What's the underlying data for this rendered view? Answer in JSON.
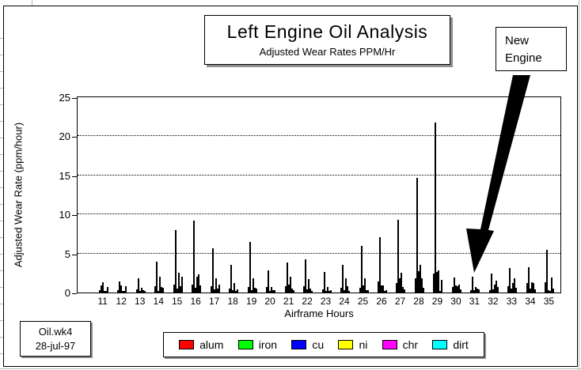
{
  "title_box": {
    "title": "Left Engine Oil Analysis",
    "subtitle": "Adjusted Wear Rates PPM/Hr"
  },
  "file_box": {
    "filename": "Oil.wk4",
    "date": "28-jul-97"
  },
  "chart_data": {
    "type": "bar",
    "title": "Left Engine Oil Analysis",
    "subtitle": "Adjusted Wear Rates PPM/Hr",
    "xlabel": "Airframe Hours",
    "ylabel": "Adjusted Wear Rate (ppm/hour)",
    "ylim": [
      0,
      25
    ],
    "yticks": [
      0,
      5,
      10,
      15,
      20,
      25
    ],
    "gridlines": [
      5,
      10,
      15,
      20
    ],
    "grid_style": "dotted",
    "legend_position": "bottom",
    "categories": [
      11,
      12,
      13,
      14,
      15,
      16,
      17,
      18,
      19,
      20,
      21,
      22,
      23,
      24,
      25,
      26,
      27,
      28,
      29,
      30,
      31,
      32,
      33,
      34,
      35
    ],
    "series": [
      {
        "name": "alum",
        "color": "#ff0000",
        "values": [
          0.3,
          0.35,
          0.4,
          0.85,
          1.0,
          1.0,
          0.8,
          0.5,
          0.7,
          0.75,
          0.85,
          0.85,
          0.4,
          0.6,
          0.6,
          1.4,
          1.2,
          1.85,
          2.4,
          0.7,
          0.3,
          0.35,
          0.85,
          1.2,
          1.3
        ]
      },
      {
        "name": "iron",
        "color": "#00ff00",
        "values": [
          0.9,
          1.4,
          1.85,
          3.95,
          8.0,
          9.2,
          5.7,
          3.5,
          6.5,
          2.85,
          3.85,
          4.3,
          2.6,
          3.5,
          5.95,
          7.1,
          9.3,
          14.7,
          21.8,
          1.95,
          2.0,
          2.4,
          3.1,
          3.2,
          5.5
        ]
      },
      {
        "name": "cu",
        "color": "#0000ff",
        "values": [
          1.3,
          0.95,
          0.25,
          0.25,
          0.5,
          0.65,
          0.4,
          0.3,
          0.3,
          0.25,
          1.0,
          0.4,
          0.15,
          0.3,
          0.95,
          0.9,
          1.85,
          2.7,
          2.6,
          0.95,
          0.3,
          0.4,
          0.5,
          0.5,
          0.3
        ]
      },
      {
        "name": "ni",
        "color": "#ffff00",
        "values": [
          0.1,
          0.25,
          0.6,
          2.0,
          2.5,
          2.0,
          1.8,
          1.2,
          1.85,
          0.75,
          2.0,
          1.7,
          0.75,
          1.85,
          1.85,
          0.9,
          2.5,
          3.5,
          2.8,
          0.85,
          0.7,
          1.0,
          1.25,
          1.3,
          0.15
        ]
      },
      {
        "name": "chr",
        "color": "#ff00ff",
        "values": [
          0.05,
          0.1,
          0.35,
          0.75,
          0.8,
          2.3,
          0.5,
          0.25,
          0.6,
          0.3,
          0.5,
          0.5,
          0.25,
          0.85,
          0.35,
          0.2,
          0.7,
          1.85,
          0.1,
          1.0,
          0.5,
          1.5,
          1.85,
          1.2,
          1.95
        ]
      },
      {
        "name": "dirt",
        "color": "#00ffff",
        "values": [
          0.7,
          0.85,
          0.25,
          0.6,
          2.0,
          0.9,
          1.0,
          0.4,
          0.5,
          0.3,
          0.3,
          0.25,
          0.35,
          0.25,
          0.35,
          0.3,
          0.4,
          0.6,
          1.6,
          0.4,
          0.4,
          0.75,
          0.6,
          0.45,
          0.5
        ]
      }
    ],
    "annotations": [
      {
        "text": "New\nEngine",
        "target_category": 31
      }
    ]
  }
}
